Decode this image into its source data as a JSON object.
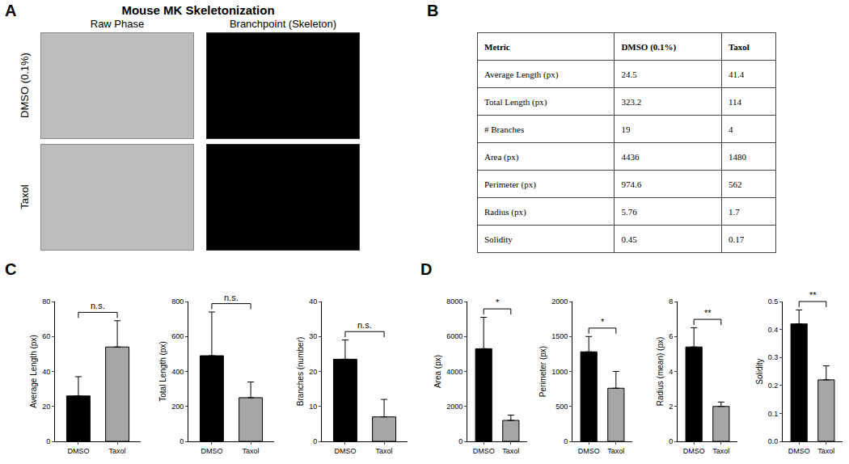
{
  "figure": {
    "panel_labels": [
      "A",
      "B",
      "C",
      "D"
    ],
    "panel_a": {
      "title": "Mouse MK Skeletonization",
      "columns": [
        "Raw Phase",
        "Branchpoint (Skeleton)"
      ],
      "rows": [
        "DMSO (0.1%)",
        "Taxol"
      ]
    },
    "panel_b": {
      "table": {
        "header": [
          "Metric",
          "DMSO (0.1%)",
          "Taxol"
        ],
        "rows": [
          [
            "Average Length (px)",
            "24.5",
            "41.4"
          ],
          [
            "Total Length (px)",
            "323.2",
            "114"
          ],
          [
            "# Branches",
            "19",
            "4"
          ],
          [
            "Area (px)",
            "4436",
            "1480"
          ],
          [
            "Perimeter (px)",
            "974.6",
            "562"
          ],
          [
            "Radius (px)",
            "5.76",
            "1.7"
          ],
          [
            "Solidity",
            "0.45",
            "0.17"
          ]
        ]
      }
    }
  },
  "chart_data": [
    {
      "type": "bar",
      "y_label": "Average Length (px)",
      "categories": [
        "DMSO",
        "Taxol"
      ],
      "values": [
        26,
        54
      ],
      "error": [
        11,
        15
      ],
      "colors": [
        "#000000",
        "#a6a6a6"
      ],
      "ylim": [
        0,
        80
      ],
      "yticks": [
        0,
        20,
        40,
        60,
        80
      ],
      "annotations": [
        "n.s."
      ]
    },
    {
      "type": "bar",
      "y_label": "Total Length (px)",
      "categories": [
        "DMSO",
        "Taxol"
      ],
      "values": [
        490,
        250
      ],
      "error": [
        250,
        90
      ],
      "colors": [
        "#000000",
        "#a6a6a6"
      ],
      "ylim": [
        0,
        800
      ],
      "yticks": [
        0,
        200,
        400,
        600,
        800
      ],
      "annotations": [
        "n.s."
      ]
    },
    {
      "type": "bar",
      "y_label": "Branches (number)",
      "categories": [
        "DMSO",
        "Taxol"
      ],
      "values": [
        23.5,
        7
      ],
      "error": [
        5.5,
        5
      ],
      "colors": [
        "#000000",
        "#a6a6a6"
      ],
      "ylim": [
        0,
        40
      ],
      "yticks": [
        0,
        10,
        20,
        30,
        40
      ],
      "annotations": [
        "n.s."
      ]
    },
    {
      "type": "bar",
      "y_label": "Area (px)",
      "categories": [
        "DMSO",
        "Taxol"
      ],
      "values": [
        5300,
        1200
      ],
      "error": [
        1800,
        300
      ],
      "colors": [
        "#000000",
        "#a6a6a6"
      ],
      "ylim": [
        0,
        8000
      ],
      "yticks": [
        0,
        2000,
        4000,
        6000,
        8000
      ],
      "annotations": [
        "*"
      ]
    },
    {
      "type": "bar",
      "y_label": "Perimeter (px)",
      "categories": [
        "DMSO",
        "Taxol"
      ],
      "values": [
        1280,
        760
      ],
      "error": [
        220,
        240
      ],
      "colors": [
        "#000000",
        "#a6a6a6"
      ],
      "ylim": [
        0,
        2000
      ],
      "yticks": [
        0,
        500,
        1000,
        1500,
        2000
      ],
      "annotations": [
        "*"
      ]
    },
    {
      "type": "bar",
      "y_label": "Radius (mean) (px)",
      "categories": [
        "DMSO",
        "Taxol"
      ],
      "values": [
        5.4,
        2.0
      ],
      "error": [
        1.1,
        0.25
      ],
      "colors": [
        "#000000",
        "#a6a6a6"
      ],
      "ylim": [
        0,
        8
      ],
      "yticks": [
        0,
        2,
        4,
        6,
        8
      ],
      "annotations": [
        "**"
      ]
    },
    {
      "type": "bar",
      "y_label": "Solidity",
      "categories": [
        "DMSO",
        "Taxol"
      ],
      "values": [
        0.42,
        0.22
      ],
      "error": [
        0.05,
        0.05
      ],
      "colors": [
        "#000000",
        "#a6a6a6"
      ],
      "ylim": [
        0,
        0.5
      ],
      "yticks": [
        {
          "value": 0,
          "label": "0.0"
        },
        0.1,
        0.2,
        0.3,
        0.4,
        0.5
      ],
      "annotations": [
        "**"
      ]
    }
  ]
}
